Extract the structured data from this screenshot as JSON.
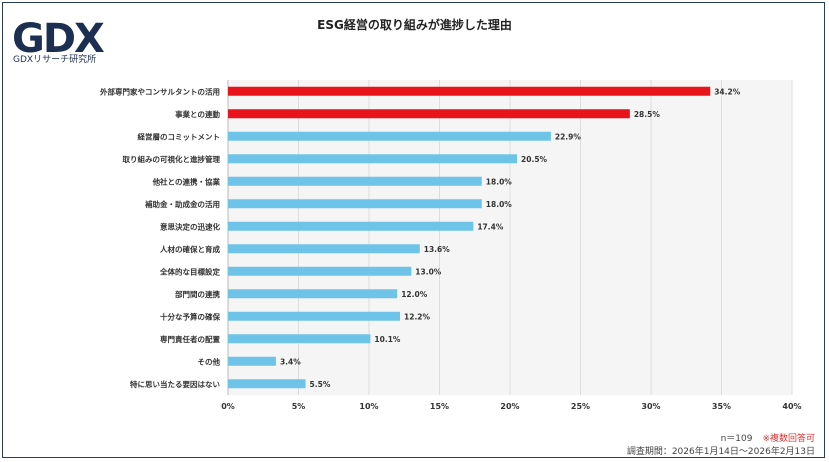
{
  "logo": {
    "text": "GDX",
    "subtitle": "GDXリサーチ研究所"
  },
  "chart_data": {
    "type": "bar",
    "orientation": "horizontal",
    "title": "ESG経営の取り組みが進捗した理由",
    "categories": [
      "外部専門家やコンサルタントの活用",
      "事業との連動",
      "経営層のコミットメント",
      "取り組みの可視化と進捗管理",
      "他社との連携・協業",
      "補助金・助成金の活用",
      "意思決定の迅速化",
      "人材の確保と育成",
      "全体的な目標設定",
      "部門間の連携",
      "十分な予算の確保",
      "専門責任者の配置",
      "その他",
      "特に思い当たる要因はない"
    ],
    "values": [
      34.2,
      28.5,
      22.9,
      20.5,
      18.0,
      18.0,
      17.4,
      13.6,
      13.0,
      12.0,
      12.2,
      10.1,
      3.4,
      5.5
    ],
    "value_labels": [
      "34.2%",
      "28.5%",
      "22.9%",
      "20.5%",
      "18.0%",
      "18.0%",
      "17.4%",
      "13.6%",
      "13.0%",
      "12.0%",
      "12.2%",
      "10.1%",
      "3.4%",
      "5.5%"
    ],
    "highlight_count": 2,
    "xlim": [
      0,
      40
    ],
    "x_ticks": [
      "0%",
      "5%",
      "10%",
      "15%",
      "20%",
      "25%",
      "30%",
      "35%",
      "40%"
    ],
    "grid": true,
    "colors": {
      "highlight": "#e8141c",
      "normal": "#6ec3e8",
      "grid": "#dddddd",
      "plot_bg": "#f5f5f5"
    }
  },
  "footer": {
    "n": "n＝109",
    "note": "※複数回答可",
    "period": "調査期間：2026年1月14日〜2026年2月13日"
  }
}
